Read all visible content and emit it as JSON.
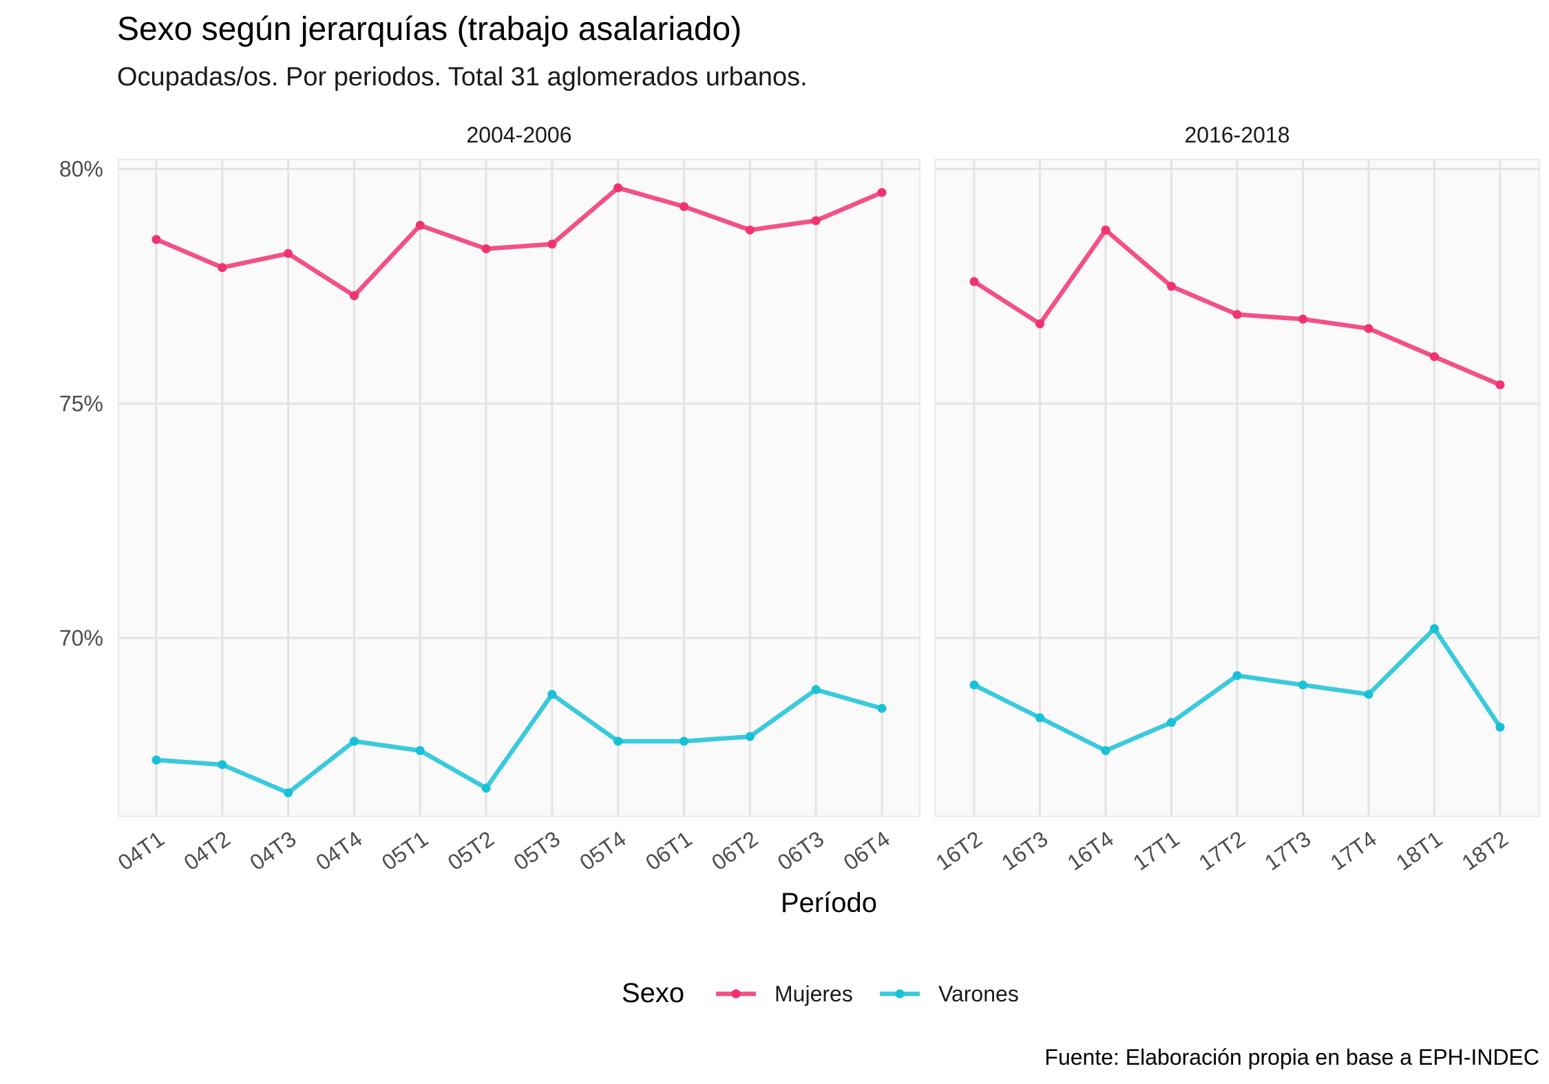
{
  "chart_data": {
    "type": "line",
    "title": "Sexo según jerarquías (trabajo asalariado)",
    "subtitle": "Ocupadas/os. Por periodos. Total 31 aglomerados urbanos.",
    "xlabel": "Período",
    "ylabel": "",
    "caption": "Fuente: Elaboración propia en base a EPH-INDEC",
    "ylim": [
      66.2,
      80.2
    ],
    "yticks": [
      70,
      75,
      80
    ],
    "ytick_labels": [
      "70%",
      "75%",
      "80%"
    ],
    "grid": true,
    "legend": {
      "title": "Sexo",
      "position": "bottom"
    },
    "series_colors": {
      "Mujeres": "#f0336e",
      "Varones": "#17c1d6"
    },
    "panels": [
      {
        "label": "2004-2006",
        "categories": [
          "04T1",
          "04T2",
          "04T3",
          "04T4",
          "05T1",
          "05T2",
          "05T3",
          "05T4",
          "06T1",
          "06T2",
          "06T3",
          "06T4"
        ],
        "series": [
          {
            "name": "Mujeres",
            "values": [
              78.5,
              77.9,
              78.2,
              77.3,
              78.8,
              78.3,
              78.4,
              79.6,
              79.2,
              78.7,
              78.9,
              79.5
            ]
          },
          {
            "name": "Varones",
            "values": [
              67.4,
              67.3,
              66.7,
              67.8,
              67.6,
              66.8,
              68.8,
              67.8,
              67.8,
              67.9,
              68.9,
              68.5
            ]
          }
        ]
      },
      {
        "label": "2016-2018",
        "categories": [
          "16T2",
          "16T3",
          "16T4",
          "17T1",
          "17T2",
          "17T3",
          "17T4",
          "18T1",
          "18T2"
        ],
        "series": [
          {
            "name": "Mujeres",
            "values": [
              77.6,
              76.7,
              78.7,
              77.5,
              76.9,
              76.8,
              76.6,
              76.0,
              75.4
            ]
          },
          {
            "name": "Varones",
            "values": [
              69.0,
              68.3,
              67.6,
              68.2,
              69.2,
              69.0,
              68.8,
              70.2,
              68.1
            ]
          }
        ]
      }
    ]
  }
}
